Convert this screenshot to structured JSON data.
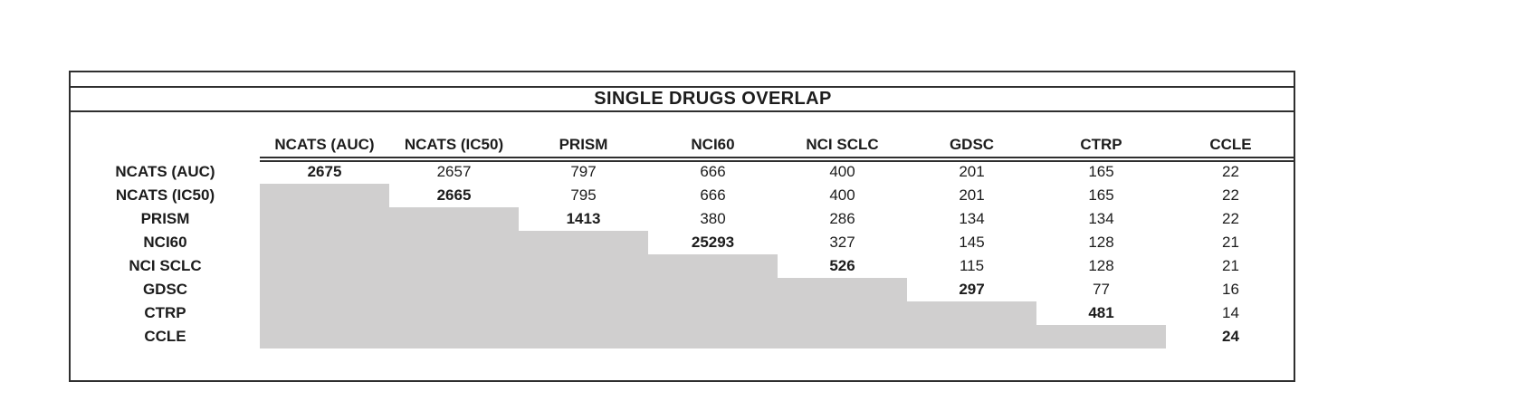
{
  "chart_data": {
    "type": "table",
    "title": "SINGLE DRUGS OVERLAP",
    "description_of_layout": "Upper-triangular pairwise overlap matrix; diagonal values are bold; cells below the diagonal are shaded gray with no values.",
    "columns": [
      "NCATS (AUC)",
      "NCATS (IC50)",
      "PRISM",
      "NCI60",
      "NCI SCLC",
      "GDSC",
      "CTRP",
      "CCLE"
    ],
    "rows": [
      {
        "label": "NCATS (AUC)",
        "values": [
          "2675",
          "2657",
          "797",
          "666",
          "400",
          "201",
          "165",
          "22"
        ]
      },
      {
        "label": "NCATS (IC50)",
        "values": [
          null,
          "2665",
          "795",
          "666",
          "400",
          "201",
          "165",
          "22"
        ]
      },
      {
        "label": "PRISM",
        "values": [
          null,
          null,
          "1413",
          "380",
          "286",
          "134",
          "134",
          "22"
        ]
      },
      {
        "label": "NCI60",
        "values": [
          null,
          null,
          null,
          "25293",
          "327",
          "145",
          "128",
          "21"
        ]
      },
      {
        "label": "NCI SCLC",
        "values": [
          null,
          null,
          null,
          null,
          "526",
          "115",
          "128",
          "21"
        ]
      },
      {
        "label": "GDSC",
        "values": [
          null,
          null,
          null,
          null,
          null,
          "297",
          "77",
          "16"
        ]
      },
      {
        "label": "CTRP",
        "values": [
          null,
          null,
          null,
          null,
          null,
          null,
          "481",
          "14"
        ]
      },
      {
        "label": "CCLE",
        "values": [
          null,
          null,
          null,
          null,
          null,
          null,
          null,
          "24"
        ]
      }
    ],
    "style_notes": {
      "diagonal_bold": true,
      "lower_triangle_shaded": true,
      "shade_color": "#d0cfcf",
      "rule_color": "#2f2f2f",
      "text_color": "#1c1c1c",
      "background_color": "#ffffff"
    }
  }
}
